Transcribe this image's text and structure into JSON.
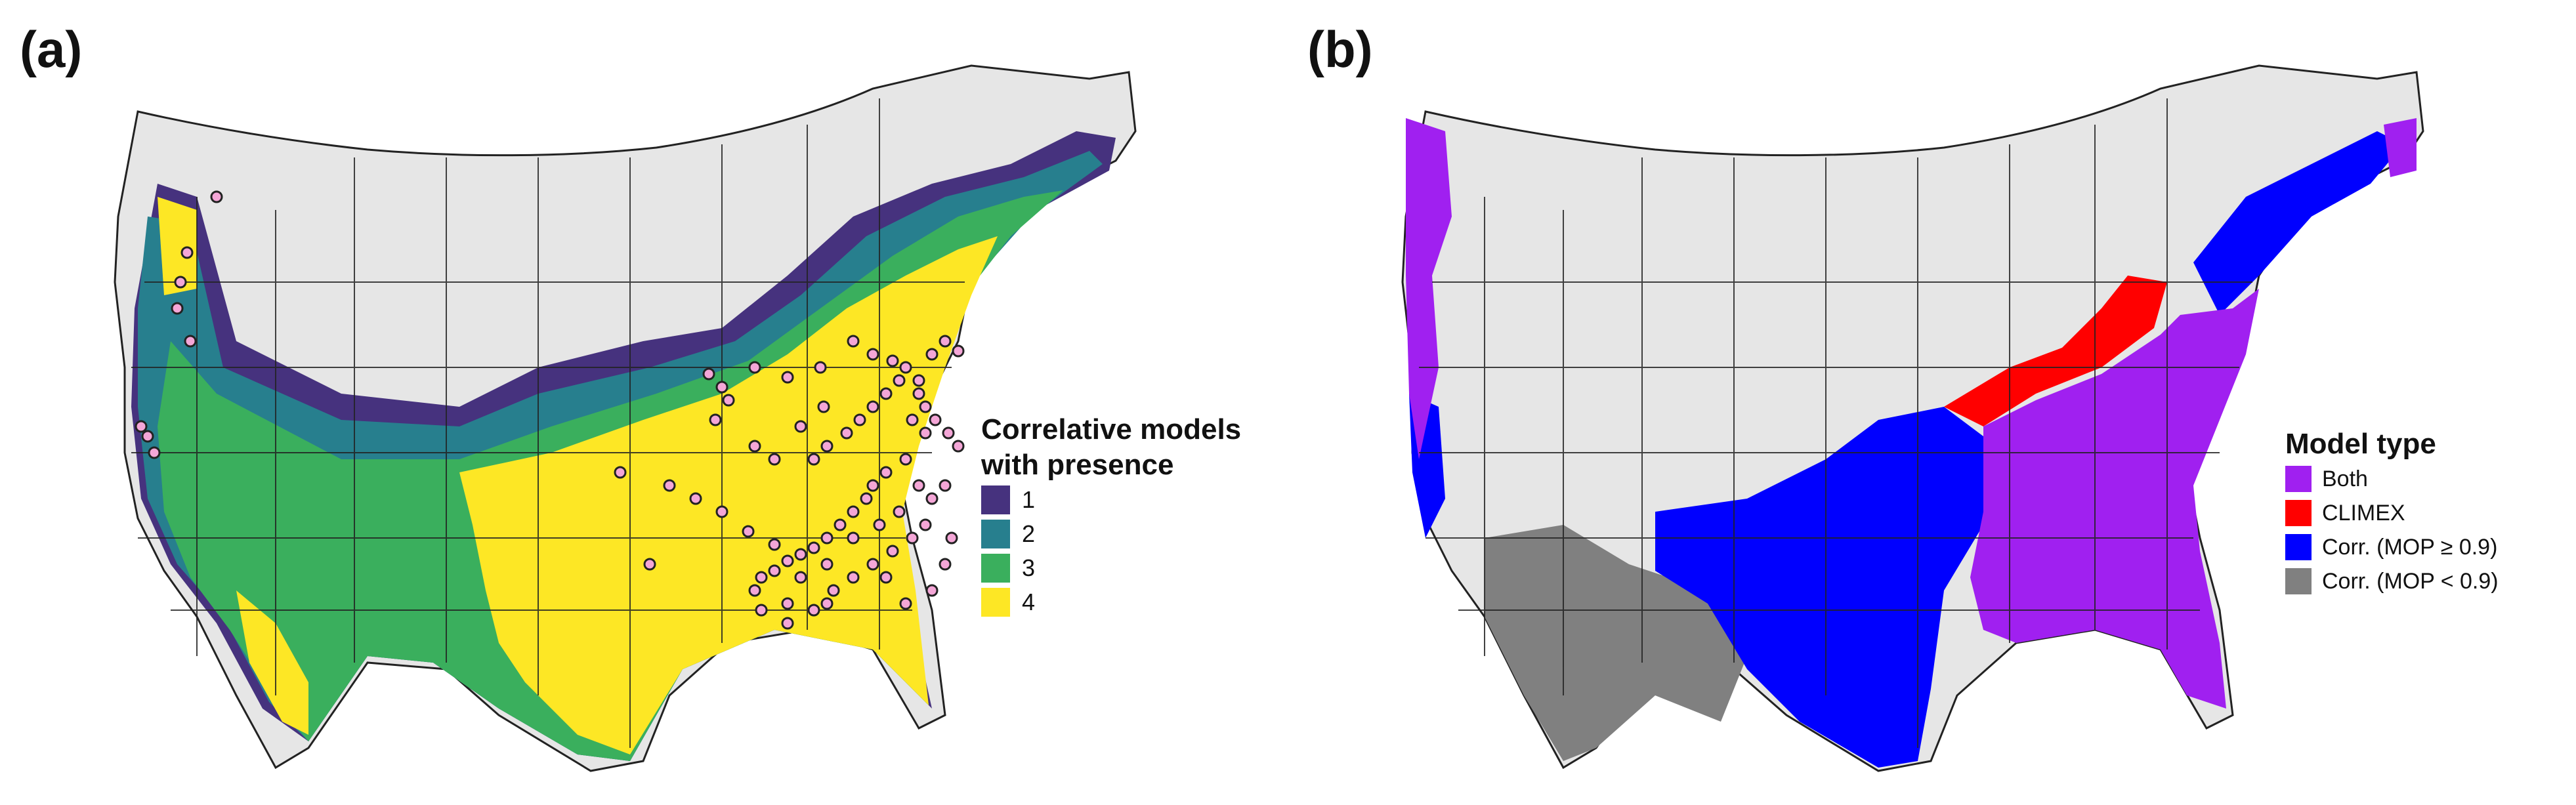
{
  "panel_a": {
    "label": "(a)",
    "legend": {
      "title_line1": "Correlative models",
      "title_line2": "with presence",
      "items": [
        {
          "label": "1",
          "color": "#46327e"
        },
        {
          "label": "2",
          "color": "#277f8e"
        },
        {
          "label": "3",
          "color": "#3aaf5d"
        },
        {
          "label": "4",
          "color": "#fde725"
        }
      ]
    }
  },
  "panel_b": {
    "label": "(b)",
    "legend": {
      "title": "Model type",
      "items": [
        {
          "label": "Both",
          "color": "#a020f0"
        },
        {
          "label": "CLIMEX",
          "color": "#ff0000"
        },
        {
          "label": "Corr. (MOP ≥ 0.9)",
          "color": "#0000ff"
        },
        {
          "label": "Corr. (MOP < 0.9)",
          "color": "#808080"
        }
      ]
    }
  },
  "colors": {
    "land": "#e6e6e6",
    "border": "#222222",
    "presence_fill": "#f4a6d7",
    "presence_stroke": "#222222"
  }
}
